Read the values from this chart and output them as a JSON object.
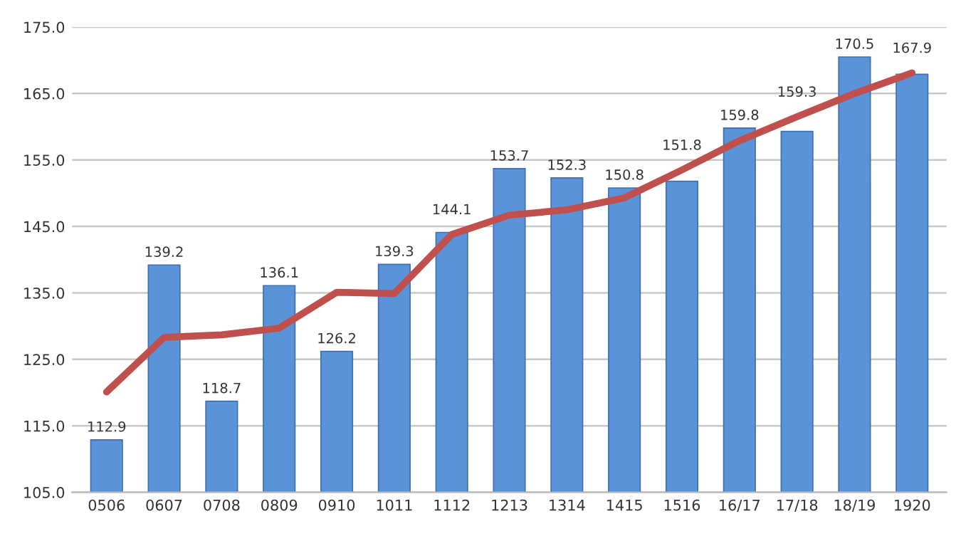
{
  "chart_data": {
    "type": "bar",
    "categories": [
      "0506",
      "0607",
      "0708",
      "0809",
      "0910",
      "1011",
      "1112",
      "1213",
      "1314",
      "1415",
      "1516",
      "16/17",
      "17/18",
      "18/19",
      "1920"
    ],
    "series": [
      {
        "color": "#5b93d8",
        "values": [
          112.9,
          139.2,
          118.7,
          136.1,
          126.2,
          139.3,
          144.1,
          153.7,
          152.3,
          150.8,
          151.8,
          159.8,
          159.3,
          170.5,
          167.9
        ],
        "data_labels": true
      },
      {
        "type": "line",
        "color": "#c0504d",
        "values": [
          120.1,
          128.3,
          128.7,
          129.7,
          135.1,
          134.9,
          143.8,
          146.7,
          147.5,
          149.3,
          153.5,
          157.9,
          161.5,
          165.0,
          168.1
        ],
        "line_style": "solid",
        "marker": "none"
      }
    ],
    "ylim": [
      105,
      175
    ],
    "yticks": [
      {
        "value": 105,
        "label": "105.0"
      },
      {
        "value": 115,
        "label": "115.0"
      },
      {
        "value": 125,
        "label": "125.0"
      },
      {
        "value": 135,
        "label": "135.0"
      },
      {
        "value": 145,
        "label": "145.0"
      },
      {
        "value": 155,
        "label": "155.0"
      },
      {
        "value": 165,
        "label": "165.0"
      },
      {
        "value": 175,
        "label": "175.0"
      }
    ],
    "grid": "y",
    "legend": false
  }
}
